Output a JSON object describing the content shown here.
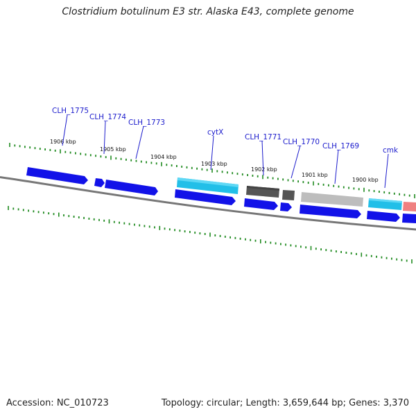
{
  "title": "Clostridium botulinum E3 str. Alaska E43, complete genome",
  "footer": {
    "accession": "Accession: NC_010723",
    "stats": "Topology: circular; Length: 3,659,644 bp; Genes: 3,370"
  },
  "colors": {
    "backbone": "#777777",
    "tick": "#1f8a1f",
    "cds": "#1212e8",
    "rna": "#22bfe8",
    "dark_gray": "#555555",
    "light_gray": "#bdbdbd",
    "salmon": "#ef8080",
    "label": "#1a1acc"
  },
  "scale_labels": [
    "1906 kbp",
    "1905 kbp",
    "1904 kbp",
    "1903 kbp",
    "1902 kbp",
    "1901 kbp",
    "1900 kbp"
  ],
  "gene_labels": [
    "CLH_1775",
    "CLH_1774",
    "CLH_1773",
    "cytX",
    "CLH_1771",
    "CLH_1770",
    "CLH_1769",
    "cmk"
  ]
}
